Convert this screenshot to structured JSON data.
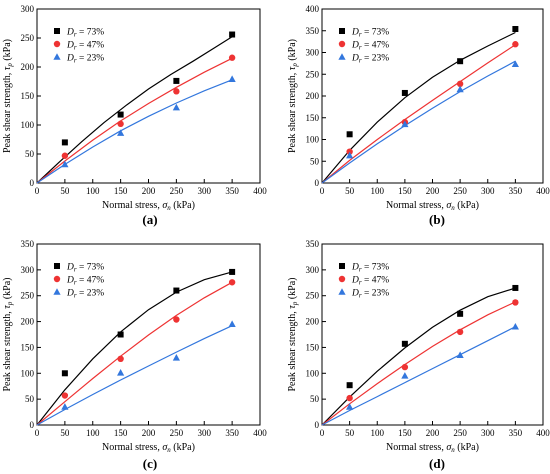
{
  "legend_labels": [
    "D r = 73%",
    "D r = 47%",
    "D r = 23%"
  ],
  "colors": {
    "dr73": "#000000",
    "dr47": "#ee3333",
    "dr23": "#3377dd"
  },
  "chart_data": [
    {
      "type": "scatter",
      "panel_label": "(a)",
      "xlabel": "Normal stress, σn (kPa)",
      "ylabel": "Peak shear strength, τp (kPa)",
      "xlim": [
        0,
        400
      ],
      "ylim": [
        0,
        300
      ],
      "xticks": [
        0,
        50,
        100,
        150,
        200,
        250,
        300,
        350,
        400
      ],
      "yticks": [
        0,
        50,
        100,
        150,
        200,
        250,
        300
      ],
      "legend_position": "top-left",
      "series": [
        {
          "name": "Dr = 73%",
          "marker": "square",
          "x": [
            50,
            150,
            250,
            350
          ],
          "y": [
            70,
            118,
            176,
            256
          ],
          "fit": [
            0,
            40,
            80,
            120,
            160,
            200,
            240,
            280,
            320,
            350
          ],
          "fit_y": [
            0,
            36,
            71,
            104,
            134,
            162,
            187,
            210,
            234,
            252
          ]
        },
        {
          "name": "Dr = 47%",
          "marker": "circle",
          "x": [
            50,
            150,
            250,
            350
          ],
          "y": [
            47,
            102,
            158,
            216
          ],
          "fit": [
            0,
            50,
            100,
            150,
            200,
            250,
            300,
            350
          ],
          "fit_y": [
            0,
            38,
            74,
            107,
            137,
            165,
            191,
            215
          ]
        },
        {
          "name": "Dr = 23%",
          "marker": "triangle",
          "x": [
            50,
            150,
            250,
            350
          ],
          "y": [
            32,
            86,
            130,
            179
          ],
          "fit": [
            0,
            50,
            100,
            150,
            200,
            250,
            300,
            350
          ],
          "fit_y": [
            0,
            32,
            62,
            90,
            115,
            138,
            159,
            178
          ]
        }
      ]
    },
    {
      "type": "scatter",
      "panel_label": "(b)",
      "xlabel": "Normal stress, σn (kPa)",
      "ylabel": "Peak shear strength, τp (kPa)",
      "xlim": [
        0,
        400
      ],
      "ylim": [
        0,
        400
      ],
      "xticks": [
        0,
        50,
        100,
        150,
        200,
        250,
        300,
        350,
        400
      ],
      "yticks": [
        0,
        50,
        100,
        150,
        200,
        250,
        300,
        350,
        400
      ],
      "legend_position": "top-left",
      "series": [
        {
          "name": "Dr = 73%",
          "marker": "square",
          "x": [
            50,
            150,
            250,
            350
          ],
          "y": [
            112,
            207,
            280,
            354
          ],
          "fit": [
            0,
            50,
            100,
            150,
            200,
            250,
            300,
            350
          ],
          "fit_y": [
            0,
            75,
            140,
            196,
            243,
            282,
            315,
            346
          ]
        },
        {
          "name": "Dr = 47%",
          "marker": "circle",
          "x": [
            50,
            150,
            250,
            350
          ],
          "y": [
            72,
            140,
            228,
            319
          ],
          "fit": [
            0,
            50,
            100,
            150,
            200,
            250,
            300,
            350
          ],
          "fit_y": [
            0,
            52,
            100,
            146,
            190,
            233,
            276,
            318
          ]
        },
        {
          "name": "Dr = 23%",
          "marker": "triangle",
          "x": [
            50,
            150,
            250,
            350
          ],
          "y": [
            63,
            135,
            215,
            273
          ],
          "fit": [
            0,
            50,
            100,
            150,
            200,
            250,
            300,
            350
          ],
          "fit_y": [
            0,
            46,
            90,
            132,
            172,
            210,
            246,
            280
          ]
        }
      ]
    },
    {
      "type": "scatter",
      "panel_label": "(c)",
      "xlabel": "Normal stress, σn (kPa)",
      "ylabel": "Peak shear strength, τp (kPa)",
      "xlim": [
        0,
        400
      ],
      "ylim": [
        0,
        350
      ],
      "xticks": [
        0,
        50,
        100,
        150,
        200,
        250,
        300,
        350,
        400
      ],
      "yticks": [
        0,
        50,
        100,
        150,
        200,
        250,
        300,
        350
      ],
      "legend_position": "top-left",
      "series": [
        {
          "name": "Dr = 73%",
          "marker": "square",
          "x": [
            50,
            150,
            250,
            350
          ],
          "y": [
            100,
            175,
            260,
            296
          ],
          "fit": [
            0,
            50,
            100,
            150,
            200,
            250,
            300,
            350
          ],
          "fit_y": [
            0,
            68,
            128,
            180,
            223,
            257,
            281,
            296
          ]
        },
        {
          "name": "Dr = 47%",
          "marker": "circle",
          "x": [
            50,
            150,
            250,
            350
          ],
          "y": [
            57,
            128,
            204,
            276
          ],
          "fit": [
            0,
            50,
            100,
            150,
            200,
            250,
            300,
            350
          ],
          "fit_y": [
            0,
            45,
            90,
            133,
            174,
            212,
            246,
            276
          ]
        },
        {
          "name": "Dr = 23%",
          "marker": "triangle",
          "x": [
            50,
            150,
            250,
            350
          ],
          "y": [
            35,
            101,
            130,
            195
          ],
          "fit": [
            0,
            50,
            100,
            150,
            200,
            250,
            300,
            350
          ],
          "fit_y": [
            0,
            30,
            59,
            87,
            114,
            141,
            167,
            192
          ]
        }
      ]
    },
    {
      "type": "scatter",
      "panel_label": "(d)",
      "xlabel": "Normal stress, σn (kPa)",
      "ylabel": "Peak shear strength, τp (kPa)",
      "xlim": [
        0,
        400
      ],
      "ylim": [
        0,
        350
      ],
      "xticks": [
        0,
        50,
        100,
        150,
        200,
        250,
        300,
        350,
        400
      ],
      "yticks": [
        0,
        50,
        100,
        150,
        200,
        250,
        300,
        350
      ],
      "legend_position": "top-left",
      "series": [
        {
          "name": "Dr = 73%",
          "marker": "square",
          "x": [
            50,
            150,
            250,
            350
          ],
          "y": [
            77,
            157,
            215,
            265
          ],
          "fit": [
            0,
            50,
            100,
            150,
            200,
            250,
            300,
            350
          ],
          "fit_y": [
            0,
            54,
            104,
            149,
            189,
            222,
            248,
            265
          ]
        },
        {
          "name": "Dr = 47%",
          "marker": "circle",
          "x": [
            50,
            150,
            250,
            350
          ],
          "y": [
            52,
            112,
            180,
            237
          ],
          "fit": [
            0,
            50,
            100,
            150,
            200,
            250,
            300,
            350
          ],
          "fit_y": [
            0,
            41,
            80,
            117,
            152,
            184,
            213,
            238
          ]
        },
        {
          "name": "Dr = 23%",
          "marker": "triangle",
          "x": [
            50,
            150,
            250,
            350
          ],
          "y": [
            35,
            95,
            135,
            190
          ],
          "fit": [
            0,
            50,
            100,
            150,
            200,
            250,
            300,
            350
          ],
          "fit_y": [
            0,
            28,
            55,
            82,
            109,
            136,
            163,
            190
          ]
        }
      ]
    }
  ]
}
